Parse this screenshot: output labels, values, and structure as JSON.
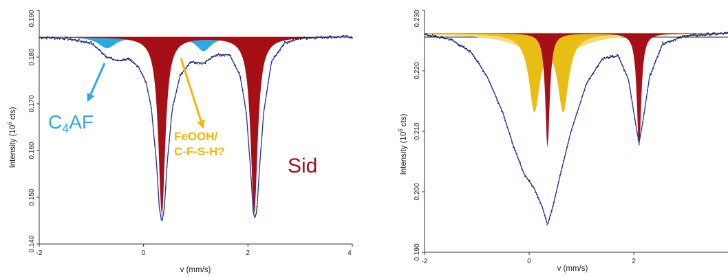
{
  "chart_data": [
    {
      "type": "line",
      "xlabel": "v (mm/s)",
      "ylabel_main": "Intensity (10",
      "ylabel_sup": "6",
      "ylabel_tail": " cts)",
      "xlim": [
        -2,
        4
      ],
      "ylim": [
        0.14,
        0.19
      ],
      "xticks": [
        "-2",
        "0",
        "2",
        "4"
      ],
      "yticks": [
        "0.140",
        "0.150",
        "0.160",
        "0.170",
        "0.180",
        "0.190"
      ],
      "baseline": 0.1843,
      "components": [
        {
          "name": "C4AF",
          "color": "#29abe2",
          "lines": [
            {
              "center": -0.7,
              "depth": 0.0024,
              "width": 0.4
            },
            {
              "center": 1.15,
              "depth": 0.003,
              "width": 0.35
            }
          ]
        },
        {
          "name": "FeOOH/C-F-S-H?",
          "color": "#f2c200",
          "lines": [
            {
              "center": 0.35,
              "depth": 0.002,
              "width": 0.65
            }
          ]
        },
        {
          "name": "Sid",
          "color": "#a50f15",
          "lines": [
            {
              "center": 0.35,
              "depth": 0.038,
              "width": 0.16
            },
            {
              "center": 2.12,
              "depth": 0.038,
              "width": 0.16
            }
          ]
        }
      ],
      "envelope": [
        [
          -2.0,
          0.1842
        ],
        [
          -1.5,
          0.184
        ],
        [
          -1.0,
          0.183
        ],
        [
          -0.7,
          0.18
        ],
        [
          -0.5,
          0.1792
        ],
        [
          -0.3,
          0.1796
        ],
        [
          -0.1,
          0.178
        ],
        [
          0.05,
          0.1745
        ],
        [
          0.15,
          0.169
        ],
        [
          0.25,
          0.157
        ],
        [
          0.3,
          0.148
        ],
        [
          0.35,
          0.1445
        ],
        [
          0.4,
          0.148
        ],
        [
          0.45,
          0.157
        ],
        [
          0.55,
          0.169
        ],
        [
          0.7,
          0.176
        ],
        [
          0.9,
          0.179
        ],
        [
          1.15,
          0.1787
        ],
        [
          1.4,
          0.1805
        ],
        [
          1.65,
          0.1805
        ],
        [
          1.85,
          0.176
        ],
        [
          1.97,
          0.168
        ],
        [
          2.05,
          0.156
        ],
        [
          2.1,
          0.147
        ],
        [
          2.13,
          0.1455
        ],
        [
          2.17,
          0.147
        ],
        [
          2.22,
          0.156
        ],
        [
          2.3,
          0.168
        ],
        [
          2.45,
          0.179
        ],
        [
          2.7,
          0.183
        ],
        [
          3.0,
          0.184
        ],
        [
          3.5,
          0.1843
        ],
        [
          4.0,
          0.1843
        ]
      ]
    },
    {
      "type": "line",
      "xlabel": "v (mm/s)",
      "ylabel_main": "Intensity (10",
      "ylabel_sup": "6",
      "ylabel_tail": " cts)",
      "xlim": [
        -2,
        3.8
      ],
      "ylim": [
        0.19,
        0.23
      ],
      "xticks": [
        "-2",
        "0",
        "2"
      ],
      "yticks": [
        "0.190",
        "0.200",
        "0.210",
        "0.220",
        "0.230"
      ],
      "baseline": 0.2262,
      "components": [
        {
          "name": "light-yellow broad",
          "color": "#f4dd7c",
          "lines": [
            {
              "center": 0.4,
              "depth": 0.0048,
              "width": 1.1
            }
          ]
        },
        {
          "name": "yellow doublet",
          "color": "#e8be16",
          "lines": [
            {
              "center": 0.1,
              "depth": 0.0125,
              "width": 0.25
            },
            {
              "center": 0.65,
              "depth": 0.0125,
              "width": 0.25
            }
          ]
        },
        {
          "name": "Sid",
          "color": "#a50f15",
          "lines": [
            {
              "center": 0.35,
              "depth": 0.019,
              "width": 0.1
            },
            {
              "center": 2.1,
              "depth": 0.019,
              "width": 0.1
            }
          ]
        }
      ],
      "envelope": [
        [
          -2.0,
          0.226
        ],
        [
          -1.5,
          0.2252
        ],
        [
          -1.1,
          0.223
        ],
        [
          -0.8,
          0.219
        ],
        [
          -0.5,
          0.213
        ],
        [
          -0.3,
          0.2075
        ],
        [
          -0.1,
          0.203
        ],
        [
          0.1,
          0.2005
        ],
        [
          0.25,
          0.1975
        ],
        [
          0.35,
          0.1945
        ],
        [
          0.45,
          0.1975
        ],
        [
          0.6,
          0.203
        ],
        [
          0.8,
          0.21
        ],
        [
          1.1,
          0.218
        ],
        [
          1.4,
          0.222
        ],
        [
          1.7,
          0.2225
        ],
        [
          1.9,
          0.2185
        ],
        [
          2.02,
          0.212
        ],
        [
          2.1,
          0.208
        ],
        [
          2.18,
          0.212
        ],
        [
          2.3,
          0.219
        ],
        [
          2.55,
          0.2245
        ],
        [
          3.0,
          0.2258
        ],
        [
          3.8,
          0.2262
        ]
      ]
    }
  ],
  "annotations": {
    "c4af_main": "C",
    "c4af_sub": "4",
    "c4af_tail": "AF",
    "feooh_line1": "FeOOH/",
    "feooh_line2": "C-F-S-H?",
    "sid": "Sid"
  },
  "colors": {
    "c4af": "#29abe2",
    "feooh": "#f2b705",
    "sid": "#a50f15",
    "fit_line": "#1f2fa8",
    "data_points": "#111111"
  }
}
